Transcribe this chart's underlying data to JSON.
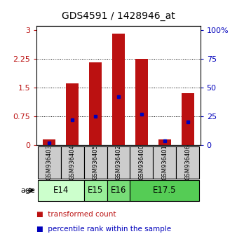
{
  "title": "GDS4591 / 1428946_at",
  "samples": [
    "GSM936403",
    "GSM936404",
    "GSM936405",
    "GSM936402",
    "GSM936400",
    "GSM936401",
    "GSM936406"
  ],
  "transformed_counts": [
    0.15,
    1.6,
    2.15,
    2.9,
    2.25,
    0.15,
    1.35
  ],
  "percentile_ranks": [
    2.0,
    22.0,
    25.0,
    42.0,
    27.0,
    4.0,
    20.0
  ],
  "age_groups": [
    {
      "label": "E14",
      "spans": [
        0,
        1
      ],
      "color": "#ccffcc"
    },
    {
      "label": "E15",
      "spans": [
        2,
        2
      ],
      "color": "#99ee99"
    },
    {
      "label": "E16",
      "spans": [
        3,
        3
      ],
      "color": "#77dd77"
    },
    {
      "label": "E17.5",
      "spans": [
        4,
        6
      ],
      "color": "#55cc55"
    }
  ],
  "bar_color": "#bb1111",
  "dot_color": "#0000bb",
  "left_yticks": [
    0,
    0.75,
    1.5,
    2.25,
    3.0
  ],
  "left_ylim": [
    0,
    3.1
  ],
  "right_yticks": [
    0,
    25,
    50,
    75,
    100
  ],
  "right_ylim": [
    0,
    103.33
  ],
  "background_color": "#ffffff",
  "sample_bg_color": "#cccccc",
  "legend_red_label": "transformed count",
  "legend_blue_label": "percentile rank within the sample"
}
